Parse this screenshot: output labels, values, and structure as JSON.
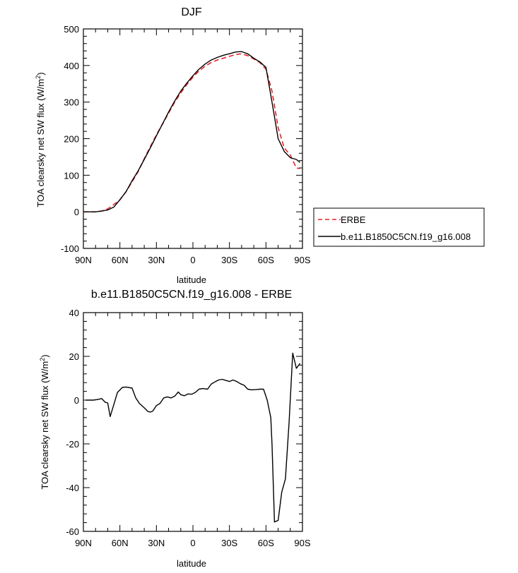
{
  "chart_data": [
    {
      "type": "line",
      "title": "DJF",
      "xlabel": "latitude",
      "ylabel": "TOA clearsky net SW flux (W/m",
      "ylabel_sup": "2",
      "ylabel_end": ")",
      "xlim": [
        90,
        -90
      ],
      "ylim": [
        -100,
        500
      ],
      "x_ticks": [
        {
          "value": 90,
          "label": "90N"
        },
        {
          "value": 60,
          "label": "60N"
        },
        {
          "value": 30,
          "label": "30N"
        },
        {
          "value": 0,
          "label": "0"
        },
        {
          "value": -30,
          "label": "30S"
        },
        {
          "value": -60,
          "label": "60S"
        },
        {
          "value": -90,
          "label": "90S"
        }
      ],
      "y_ticks": [
        {
          "value": -100,
          "label": "-100"
        },
        {
          "value": 0,
          "label": "0"
        },
        {
          "value": 100,
          "label": "100"
        },
        {
          "value": 200,
          "label": "200"
        },
        {
          "value": 300,
          "label": "300"
        },
        {
          "value": 400,
          "label": "400"
        },
        {
          "value": 500,
          "label": "500"
        }
      ],
      "grid": false,
      "legend_position": "right",
      "series": [
        {
          "name": "ERBE",
          "color": "#e8202a",
          "dash": "dashed",
          "x": [
            90,
            85,
            80,
            75,
            70,
            65,
            60,
            55,
            50,
            45,
            40,
            35,
            30,
            25,
            20,
            15,
            10,
            5,
            0,
            -5,
            -10,
            -15,
            -20,
            -25,
            -30,
            -35,
            -40,
            -45,
            -50,
            -55,
            -60,
            -65,
            -70,
            -75,
            -80,
            -85,
            -88
          ],
          "y": [
            0,
            0,
            0,
            2,
            8,
            20,
            33,
            55,
            82,
            110,
            145,
            178,
            210,
            240,
            270,
            300,
            325,
            348,
            368,
            385,
            398,
            408,
            415,
            420,
            425,
            430,
            432,
            427,
            418,
            408,
            390,
            330,
            230,
            175,
            155,
            120,
            118
          ]
        },
        {
          "name": "b.e11.B1850C5CN.f19_g16.008",
          "color": "#000000",
          "dash": "solid",
          "x": [
            90,
            85,
            80,
            75,
            70,
            65,
            60,
            55,
            50,
            45,
            40,
            35,
            30,
            25,
            20,
            15,
            10,
            5,
            0,
            -5,
            -10,
            -15,
            -20,
            -25,
            -30,
            -35,
            -40,
            -45,
            -50,
            -55,
            -60,
            -65,
            -70,
            -75,
            -80,
            -85,
            -88
          ],
          "y": [
            0,
            0,
            0,
            2,
            5,
            13,
            33,
            55,
            85,
            112,
            143,
            175,
            208,
            240,
            273,
            303,
            330,
            352,
            372,
            390,
            404,
            415,
            422,
            428,
            432,
            437,
            438,
            432,
            420,
            410,
            395,
            300,
            200,
            165,
            148,
            143,
            135
          ]
        }
      ]
    },
    {
      "type": "line",
      "title": "b.e11.B1850C5CN.f19_g16.008 - ERBE",
      "xlabel": "latitude",
      "ylabel": "TOA clearsky net SW flux (W/m",
      "ylabel_sup": "2",
      "ylabel_end": ")",
      "xlim": [
        90,
        -90
      ],
      "ylim": [
        -60,
        40
      ],
      "x_ticks": [
        {
          "value": 90,
          "label": "90N"
        },
        {
          "value": 60,
          "label": "60N"
        },
        {
          "value": 30,
          "label": "30N"
        },
        {
          "value": 0,
          "label": "0"
        },
        {
          "value": -30,
          "label": "30S"
        },
        {
          "value": -60,
          "label": "60S"
        },
        {
          "value": -90,
          "label": "90S"
        }
      ],
      "y_ticks": [
        {
          "value": -60,
          "label": "-60"
        },
        {
          "value": -40,
          "label": "-40"
        },
        {
          "value": -20,
          "label": "-20"
        },
        {
          "value": 0,
          "label": "0"
        },
        {
          "value": 20,
          "label": "20"
        },
        {
          "value": 40,
          "label": "40"
        }
      ],
      "grid": false,
      "series": [
        {
          "color": "#000000",
          "dash": "solid",
          "x": [
            88,
            85,
            82,
            78,
            75,
            72,
            70,
            68,
            65,
            62,
            58,
            55,
            50,
            47,
            44,
            40,
            37,
            35,
            33,
            30,
            27,
            24,
            21,
            18,
            15,
            12,
            10,
            7,
            4,
            1,
            -2,
            -5,
            -8,
            -12,
            -15,
            -18,
            -21,
            -24,
            -27,
            -30,
            -33,
            -36,
            -39,
            -42,
            -45,
            -48,
            -52,
            -55,
            -58,
            -61,
            -64,
            -65,
            -67,
            -70,
            -73,
            -76,
            -79,
            -82,
            -85,
            -88
          ],
          "y": [
            0,
            0,
            0,
            0.3,
            0.7,
            -1,
            -1.3,
            -7.5,
            -2,
            3.5,
            5.8,
            6,
            5.5,
            1,
            -1.5,
            -3.5,
            -5.2,
            -5.5,
            -5,
            -2.5,
            -1.5,
            1,
            1.5,
            1,
            1.8,
            3.7,
            2.5,
            2,
            2.8,
            2.7,
            3.5,
            5,
            5.3,
            5,
            7.3,
            8.3,
            9.2,
            9.5,
            9,
            8.5,
            9.2,
            8.5,
            7.5,
            6.8,
            5,
            4.7,
            4.8,
            5,
            5,
            0,
            -8,
            -20,
            -55.7,
            -55,
            -42,
            -36,
            -10,
            21.5,
            14.5,
            16.8
          ]
        }
      ]
    }
  ]
}
